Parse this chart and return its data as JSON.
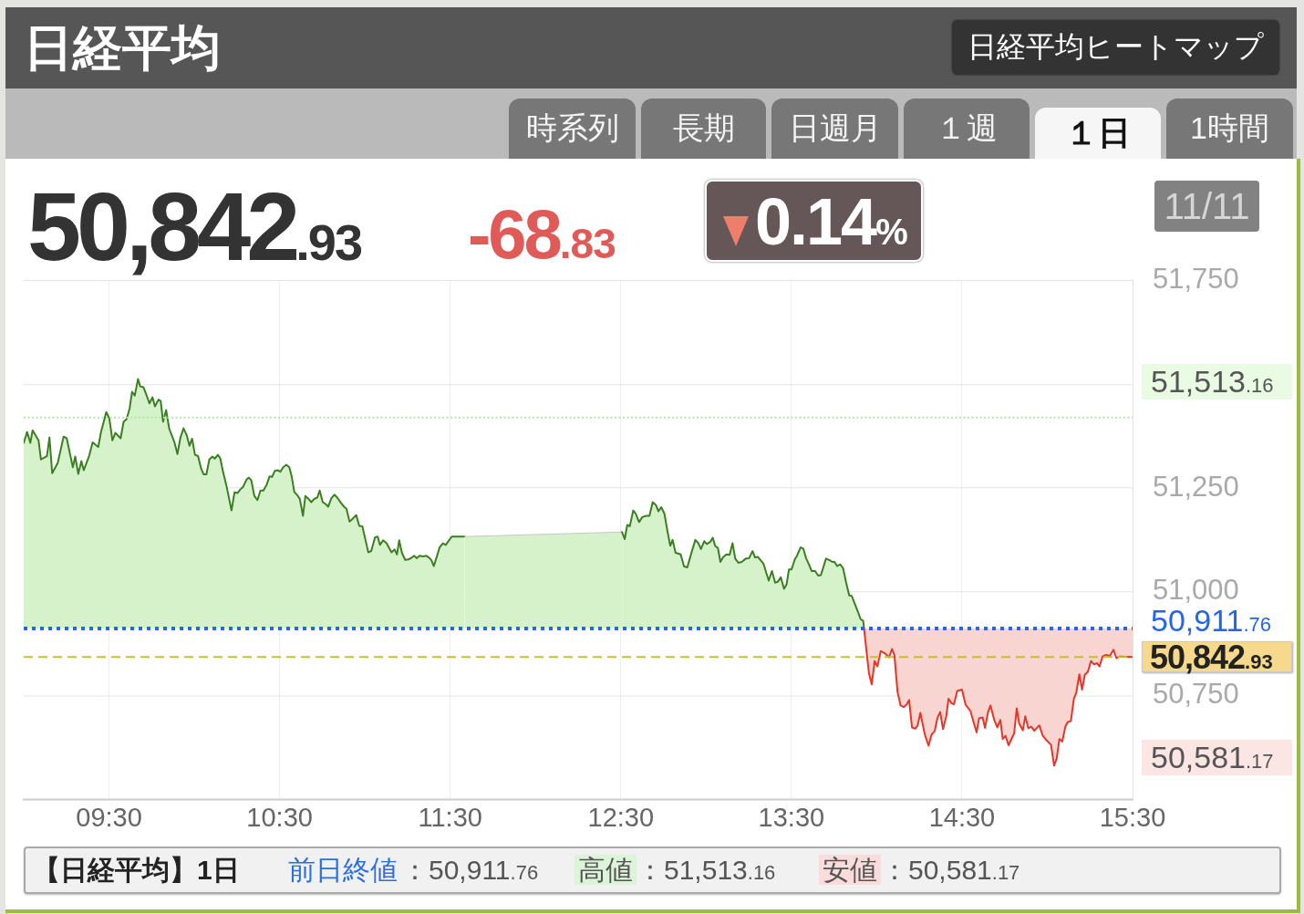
{
  "chart_data": {
    "type": "area",
    "title": "日経平均",
    "annotations": [
      "日経平均ヒートマップ",
      "時系列",
      "長期",
      "日週月",
      "１週",
      "１日",
      "1時間",
      "50,842.93",
      "-68.83",
      "0.14%",
      "11/11",
      "【日経平均】1日",
      "前日終値：50,911.76",
      "高値：51,513.16",
      "安値：50,581.17",
      "51,513.16",
      "50,581.17"
    ],
    "xlim": [
      9,
      15.5
    ],
    "xticks": [
      {
        "value": 9.5,
        "label": "09:30"
      },
      {
        "value": 10.5,
        "label": "10:30"
      },
      {
        "value": 11.5,
        "label": "11:30"
      },
      {
        "value": 12.5,
        "label": "12:30"
      },
      {
        "value": 13.5,
        "label": "13:30"
      },
      {
        "value": 14.5,
        "label": "14:30"
      },
      {
        "value": 15.5,
        "label": "15:30"
      }
    ],
    "ylim": [
      50500,
      51750
    ],
    "yticks": [
      {
        "value": 50750,
        "label": "50,750"
      },
      {
        "value": 51000,
        "label": "51,000"
      },
      {
        "value": 51250,
        "label": "51,250"
      },
      {
        "value": 51500,
        "label": null
      },
      {
        "value": 51750,
        "label": "51,750"
      }
    ],
    "grid": true,
    "marker": "none",
    "line_style": "solid",
    "ref_lines": [
      {
        "axis": "y",
        "value": 50911.76,
        "label": "50,911.76",
        "color": "#2266ee",
        "line_style": "dotted"
      },
      {
        "axis": "y",
        "value": 50842.93,
        "label": "50,842.93",
        "color": "#c8bf2e",
        "line_style": "dashed"
      },
      {
        "axis": "y",
        "value": 51420,
        "color": "#b5e6ad",
        "line_style": "dotted"
      }
    ],
    "series": [
      {
        "color": "#3b7f22",
        "x": [
          9.0,
          9.02,
          9.039,
          9.052,
          9.087,
          9.101,
          9.136,
          9.151,
          9.167,
          9.199,
          9.234,
          9.252,
          9.288,
          9.302,
          9.32,
          9.338,
          9.352,
          9.384,
          9.404,
          9.437,
          9.452,
          9.484,
          9.502,
          9.52,
          9.537,
          9.568,
          9.586,
          9.603,
          9.621,
          9.635,
          9.651,
          9.67,
          9.683,
          9.702,
          9.719,
          9.737,
          9.755,
          9.769,
          9.79,
          9.803,
          9.817,
          9.835,
          9.853,
          9.883,
          9.901,
          9.919,
          9.937,
          9.955,
          9.972,
          9.987,
          10.004,
          10.022,
          10.04,
          10.055,
          10.071,
          10.088,
          10.106,
          10.12,
          10.138,
          10.152,
          10.168,
          10.191,
          10.218,
          10.236,
          10.254,
          10.268,
          10.286,
          10.307,
          10.32,
          10.334,
          10.352,
          10.37,
          10.388,
          10.405,
          10.424,
          10.441,
          10.456,
          10.473,
          10.491,
          10.504,
          10.521,
          10.539,
          10.557,
          10.571,
          10.586,
          10.607,
          10.619,
          10.637,
          10.651,
          10.667,
          10.686,
          10.703,
          10.721,
          10.735,
          10.753,
          10.771,
          10.785,
          10.803,
          10.821,
          10.838,
          10.86,
          10.878,
          10.892,
          10.91,
          10.928,
          10.949,
          10.967,
          10.985,
          11.02,
          11.037,
          11.059,
          11.075,
          11.088,
          11.107,
          11.127,
          11.156,
          11.174,
          11.188,
          11.201,
          11.217,
          11.236,
          11.255,
          11.27,
          11.289,
          11.303,
          11.321,
          11.341,
          11.36,
          11.379,
          11.39,
          11.404,
          11.419,
          11.438,
          11.457,
          11.474,
          11.509,
          11.585,
          12.507,
          12.523,
          12.538,
          12.553,
          12.573,
          12.588,
          12.607,
          12.626,
          12.649,
          12.668,
          12.687,
          12.706,
          12.721,
          12.737,
          12.756,
          12.775,
          12.79,
          12.804,
          12.821,
          12.851,
          12.871,
          12.89,
          12.912,
          12.937,
          12.955,
          12.97,
          12.989,
          13.004,
          13.024,
          13.039,
          13.054,
          13.069,
          13.084,
          13.099,
          13.119,
          13.138,
          13.155,
          13.171,
          13.189,
          13.209,
          13.233,
          13.252,
          13.272,
          13.287,
          13.304,
          13.336,
          13.367,
          13.386,
          13.405,
          13.42,
          13.438,
          13.457,
          13.472,
          13.486,
          13.501,
          13.52,
          13.533,
          13.554,
          13.57,
          13.587,
          13.604,
          13.619,
          13.639,
          13.657,
          13.673,
          13.703,
          13.724,
          13.74,
          13.753,
          13.768,
          13.786,
          13.803,
          13.82,
          13.839,
          13.854,
          13.887,
          13.906,
          13.921,
          13.926
        ],
        "values": [
          51359,
          51385,
          51359,
          51389,
          51365,
          51319,
          51327,
          51372,
          51286,
          51310,
          51374,
          51370,
          51300,
          51326,
          51284,
          51315,
          51293,
          51328,
          51360,
          51349,
          51383,
          51433,
          51418,
          51365,
          51383,
          51370,
          51410,
          51416,
          51442,
          51482,
          51473,
          51513,
          51495,
          51493,
          51475,
          51454,
          51469,
          51447,
          51463,
          51460,
          51410,
          51438,
          51393,
          51361,
          51332,
          51372,
          51394,
          51378,
          51352,
          51369,
          51330,
          51327,
          51297,
          51283,
          51283,
          51319,
          51326,
          51321,
          51330,
          51322,
          51290,
          51251,
          51196,
          51240,
          51238,
          51246,
          51253,
          51271,
          51275,
          51269,
          51231,
          51221,
          51244,
          51244,
          51258,
          51278,
          51277,
          51292,
          51293,
          51289,
          51300,
          51306,
          51300,
          51278,
          51241,
          51231,
          51223,
          51183,
          51231,
          51225,
          51216,
          51224,
          51227,
          51244,
          51216,
          51211,
          51205,
          51225,
          51234,
          51227,
          51214,
          51205,
          51200,
          51169,
          51176,
          51185,
          51159,
          51158,
          51095,
          51098,
          51131,
          51133,
          51113,
          51124,
          51117,
          51095,
          51102,
          51090,
          51124,
          51094,
          51077,
          51078,
          51081,
          51087,
          51081,
          51087,
          51085,
          51087,
          51081,
          51076,
          51062,
          51081,
          51107,
          51117,
          51113,
          51133,
          51133,
          51144,
          51127,
          51161,
          51158,
          51196,
          51188,
          51168,
          51180,
          51183,
          51183,
          51216,
          51209,
          51194,
          51204,
          51188,
          51143,
          51111,
          51125,
          51094,
          51090,
          51061,
          51059,
          51091,
          51125,
          51117,
          51103,
          51122,
          51115,
          51120,
          51130,
          51110,
          51106,
          51072,
          51083,
          51090,
          51089,
          51117,
          51080,
          51070,
          51072,
          51080,
          51081,
          51098,
          51083,
          51084,
          51068,
          51027,
          51050,
          51022,
          51024,
          51035,
          51007,
          51018,
          51054,
          51054,
          51078,
          51087,
          51107,
          51104,
          51080,
          51065,
          51050,
          51050,
          51039,
          51040,
          51080,
          51076,
          51072,
          51072,
          51062,
          51066,
          51057,
          51024,
          50991,
          50990,
          50955,
          50934,
          50930,
          50912
        ]
      },
      {
        "type": "line",
        "color": "#e8352a",
        "x": [
          13.926,
          13.94,
          13.955,
          13.971,
          13.988,
          14.004,
          14.024,
          14.047,
          14.072,
          14.09,
          14.104,
          14.122,
          14.14,
          14.158,
          14.175,
          14.19,
          14.207,
          14.226,
          14.24,
          14.256,
          14.282,
          14.304,
          14.322,
          14.34,
          14.357,
          14.372,
          14.389,
          14.408,
          14.421,
          14.44,
          14.453,
          14.472,
          14.5,
          14.521,
          14.55,
          14.568,
          14.586,
          14.6,
          14.621,
          14.635,
          14.653,
          14.667,
          14.689,
          14.707,
          14.725,
          14.739,
          14.755,
          14.773,
          14.79,
          14.806,
          14.821,
          14.835,
          14.857,
          14.871,
          14.889,
          14.906,
          14.924,
          14.953,
          14.974,
          14.996,
          15.022,
          15.04,
          15.055,
          15.071,
          15.088,
          15.106,
          15.12,
          15.138,
          15.156,
          15.17,
          15.188,
          15.204,
          15.22,
          15.238,
          15.256,
          15.274,
          15.291,
          15.306,
          15.324,
          15.345,
          15.366,
          15.388,
          15.405,
          15.424,
          15.5
        ],
        "values": [
          50912,
          50858,
          50803,
          50777,
          50833,
          50820,
          50857,
          50852,
          50842,
          50862,
          50847,
          50759,
          50726,
          50722,
          50728,
          50739,
          50673,
          50670,
          50678,
          50708,
          50656,
          50629,
          50656,
          50664,
          50697,
          50710,
          50669,
          50700,
          50742,
          50731,
          50729,
          50761,
          50764,
          50728,
          50712,
          50686,
          50661,
          50695,
          50697,
          50672,
          50710,
          50726,
          50691,
          50673,
          50691,
          50645,
          50653,
          50630,
          50645,
          50659,
          50719,
          50683,
          50666,
          50700,
          50671,
          50675,
          50665,
          50678,
          50653,
          50642,
          50631,
          50581,
          50598,
          50645,
          50639,
          50675,
          50686,
          50688,
          50742,
          50757,
          50801,
          50764,
          50800,
          50807,
          50833,
          50825,
          50828,
          50820,
          50844,
          50848,
          50845,
          50860,
          50840,
          50844,
          50843
        ],
        "lower": [
          50912,
          50858,
          50803,
          50777,
          50833,
          50820,
          50857,
          50852,
          50842,
          50862,
          50847,
          50759,
          50726,
          50722,
          50728,
          50739,
          50673,
          50670,
          50678,
          50708,
          50656,
          50629,
          50656,
          50664,
          50697,
          50710,
          50669,
          50700,
          50742,
          50731,
          50729,
          50761,
          50764,
          50728,
          50712,
          50686,
          50661,
          50695,
          50697,
          50672,
          50710,
          50726,
          50691,
          50673,
          50691,
          50645,
          50653,
          50630,
          50645,
          50659,
          50719,
          50683,
          50666,
          50700,
          50671,
          50675,
          50665,
          50678,
          50653,
          50642,
          50631,
          50581,
          50598,
          50645,
          50639,
          50675,
          50686,
          50688,
          50742,
          50757,
          50801,
          50764,
          50800,
          50807,
          50833,
          50825,
          50828,
          50820,
          50844,
          50848,
          50845,
          50860,
          50840,
          50844,
          50843
        ],
        "upper": [
          50911.76,
          50911.76,
          50911.76,
          50911.76,
          50911.76,
          50911.76,
          50911.76,
          50911.76,
          50911.76,
          50911.76,
          50911.76,
          50911.76,
          50911.76,
          50911.76,
          50911.76,
          50911.76,
          50911.76,
          50911.76,
          50911.76,
          50911.76,
          50911.76,
          50911.76,
          50911.76,
          50911.76,
          50911.76,
          50911.76,
          50911.76,
          50911.76,
          50911.76,
          50911.76,
          50911.76,
          50911.76,
          50911.76,
          50911.76,
          50911.76,
          50911.76,
          50911.76,
          50911.76,
          50911.76,
          50911.76,
          50911.76,
          50911.76,
          50911.76,
          50911.76,
          50911.76,
          50911.76,
          50911.76,
          50911.76,
          50911.76,
          50911.76,
          50911.76,
          50911.76,
          50911.76,
          50911.76,
          50911.76,
          50911.76,
          50911.76,
          50911.76,
          50911.76,
          50911.76,
          50911.76,
          50911.76,
          50911.76,
          50911.76,
          50911.76,
          50911.76,
          50911.76,
          50911.76,
          50911.76,
          50911.76,
          50911.76,
          50911.76,
          50911.76,
          50911.76,
          50911.76,
          50911.76,
          50911.76,
          50911.76,
          50911.76,
          50911.76,
          50911.76,
          50911.76,
          50911.76,
          50911.76,
          50911.76
        ]
      }
    ]
  }
}
